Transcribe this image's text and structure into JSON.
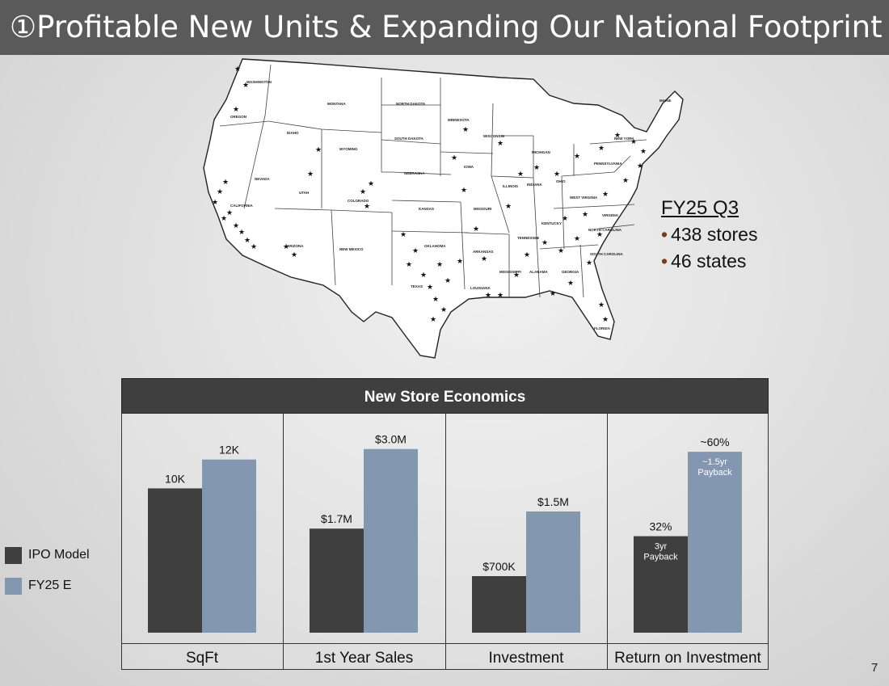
{
  "header": {
    "title": "①Profitable New Units & Expanding Our National Footprint"
  },
  "map": {
    "state_labels": [
      "WASHINGTON",
      "OREGON",
      "MONTANA",
      "IDAHO",
      "WYOMING",
      "NEVADA",
      "UTAH",
      "COLORADO",
      "CALIFORNIA",
      "ARIZONA",
      "NEW MEXICO",
      "NORTH DAKOTA",
      "SOUTH DAKOTA",
      "NEBRASKA",
      "KANSAS",
      "OKLAHOMA",
      "TEXAS",
      "MINNESOTA",
      "IOWA",
      "MISSOURI",
      "ARKANSAS",
      "LOUISIANA",
      "WISCONSIN",
      "ILLINOIS",
      "MICHIGAN",
      "INDIANA",
      "OHIO",
      "KENTUCKY",
      "TENNESSEE",
      "MISSISSIPPI",
      "ALABAMA",
      "GEORGIA",
      "FLORIDA",
      "SOUTH CAROLINA",
      "NORTH CAROLINA",
      "VIRGINIA",
      "WEST VIRGINIA",
      "PENNSYLVANIA",
      "NEW YORK",
      "MAINE"
    ]
  },
  "stats": {
    "period": "FY25 Q3",
    "lines": [
      "438 stores",
      "46 states"
    ]
  },
  "econ": {
    "header": "New Store Economics"
  },
  "legend": {
    "items": [
      {
        "label": "IPO Model",
        "color": "#3f3f3f"
      },
      {
        "label": "FY25 E",
        "color": "#8497b0"
      }
    ]
  },
  "page_number": "7",
  "chart_data": [
    {
      "type": "bar",
      "category": "SqFt",
      "series": [
        {
          "name": "IPO Model",
          "value": 10,
          "label": "10K"
        },
        {
          "name": "FY25 E",
          "value": 12,
          "label": "12K"
        }
      ],
      "ylim": [
        0,
        14
      ]
    },
    {
      "type": "bar",
      "category": "1st Year Sales",
      "series": [
        {
          "name": "IPO Model",
          "value": 1.7,
          "label": "$1.7M"
        },
        {
          "name": "FY25 E",
          "value": 3.0,
          "label": "$3.0M"
        }
      ],
      "ylim": [
        0,
        3.3
      ]
    },
    {
      "type": "bar",
      "category": "Investment",
      "series": [
        {
          "name": "IPO Model",
          "value": 0.7,
          "label": "$700K"
        },
        {
          "name": "FY25 E",
          "value": 1.5,
          "label": "$1.5M"
        }
      ],
      "ylim": [
        0,
        2.5
      ]
    },
    {
      "type": "bar",
      "category": "Return on Investment",
      "series": [
        {
          "name": "IPO Model",
          "value": 32,
          "label": "32%",
          "note": [
            "3yr",
            "Payback"
          ]
        },
        {
          "name": "FY25 E",
          "value": 60,
          "label": "~60%",
          "note": [
            "~1.5yr",
            "Payback"
          ]
        }
      ],
      "ylim": [
        0,
        67
      ]
    }
  ]
}
